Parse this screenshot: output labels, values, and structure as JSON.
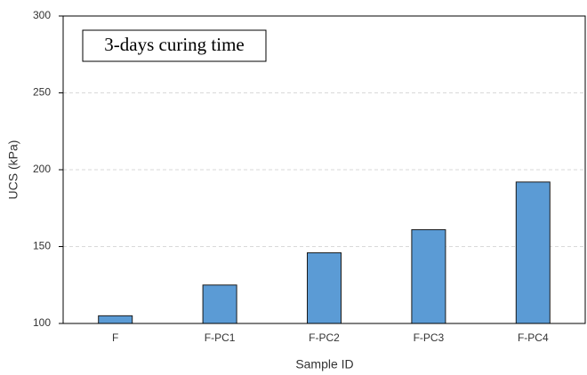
{
  "chart_data": {
    "type": "bar",
    "annotation": "3-days curing time",
    "xlabel": "Sample ID",
    "ylabel": "UCS (kPa)",
    "categories": [
      "F",
      "F-PC1",
      "F-PC2",
      "F-PC3",
      "F-PC4"
    ],
    "values": [
      105,
      125,
      146,
      161,
      192
    ],
    "color": "#5b9bd5",
    "ylim": [
      100,
      300
    ],
    "yticks": [
      100,
      150,
      200,
      250,
      300
    ],
    "grid": true
  }
}
